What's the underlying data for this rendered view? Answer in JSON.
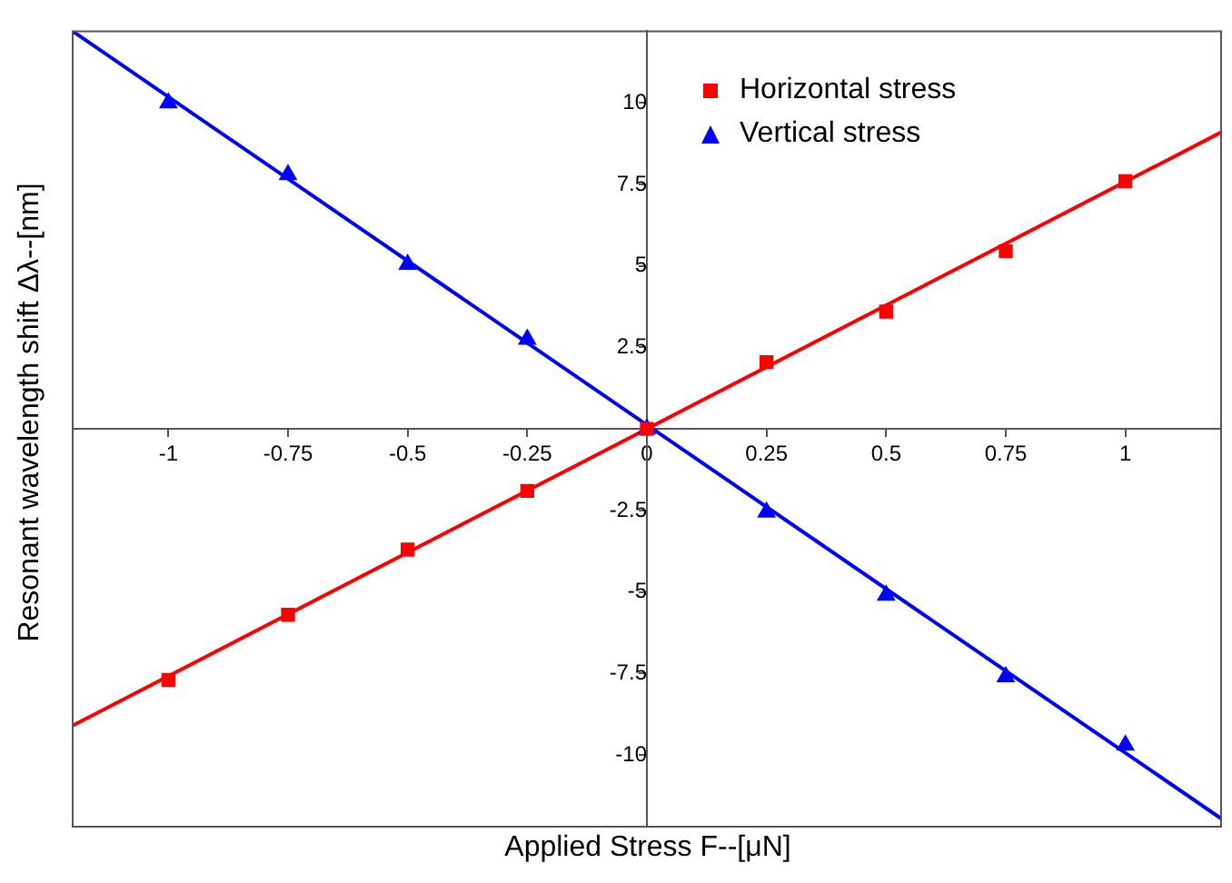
{
  "chart_data": {
    "type": "scatter",
    "xlabel": "Applied Stress F--[μN]",
    "ylabel": "Resonant wavelength shift Δλ--[nm]",
    "xlim": [
      -1.2,
      1.2
    ],
    "ylim": [
      -12.2,
      12.2
    ],
    "xticks": [
      -1,
      -0.75,
      -0.5,
      -0.25,
      0,
      0.25,
      0.5,
      0.75,
      1
    ],
    "yticks": [
      -10,
      -7.5,
      -5,
      -2.5,
      {
        "value": 0,
        "label": null
      },
      2.5,
      5,
      7.5,
      10
    ],
    "grid": false,
    "legend": "top right",
    "series": [
      {
        "name": "Horizontal stress",
        "color": "#ff0000",
        "marker": "square",
        "x": [
          -1,
          -0.75,
          -0.5,
          -0.25,
          0,
          0.25,
          0.5,
          0.75,
          1
        ],
        "values": [
          -7.7,
          -5.7,
          -3.7,
          -1.9,
          0,
          2.05,
          3.6,
          5.45,
          7.6
        ]
      },
      {
        "name": "Vertical stress",
        "color": "#0000ff",
        "marker": "triangle",
        "x": [
          -1,
          -0.75,
          -0.5,
          -0.25,
          0,
          0.25,
          0.5,
          0.75,
          1
        ],
        "values": [
          10,
          7.8,
          5.05,
          2.75,
          0,
          -2.55,
          -5.1,
          -7.6,
          -9.7
        ]
      },
      {
        "type": "line",
        "color": "#ff0000",
        "marker": "none",
        "x": [
          -1.2,
          1.2
        ],
        "values": [
          -9.1,
          9.1
        ]
      },
      {
        "type": "line",
        "color": "#0000ff",
        "marker": "none",
        "x": [
          -1.2,
          1.2
        ],
        "values": [
          12.2,
          -11.95
        ]
      }
    ]
  }
}
